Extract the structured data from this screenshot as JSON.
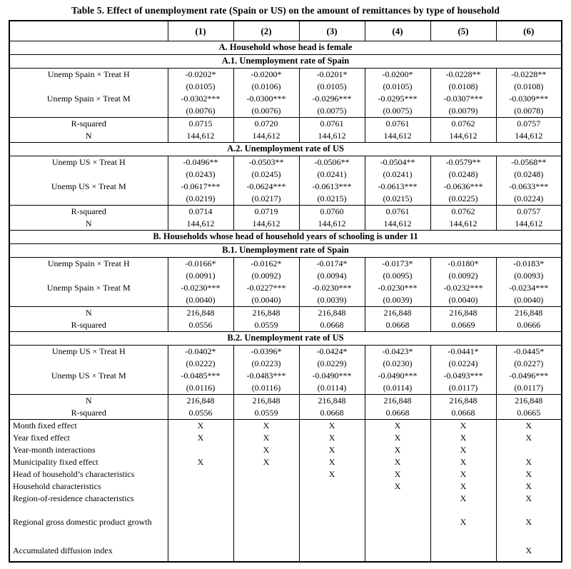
{
  "title": "Table 5. Effect of unemployment rate (Spain or US) on the amount of remittances by type of household",
  "columns": [
    "(1)",
    "(2)",
    "(3)",
    "(4)",
    "(5)",
    "(6)"
  ],
  "colors": {
    "border": "#000000",
    "text": "#000000",
    "background": "#ffffff"
  },
  "rows": [
    {
      "t": "section",
      "bt": true,
      "label": "A. Household whose head is female"
    },
    {
      "t": "section",
      "bt": true,
      "label": "A.1. Unemployment rate of Spain"
    },
    {
      "t": "data",
      "bt": true,
      "label": "Unemp Spain × Treat H",
      "values": [
        "-0.0202*",
        "-0.0200*",
        "-0.0201*",
        "-0.0200*",
        "-0.0228**",
        "-0.0228**"
      ]
    },
    {
      "t": "data",
      "label": "",
      "values": [
        "(0.0105)",
        "(0.0106)",
        "(0.0105)",
        "(0.0105)",
        "(0.0108)",
        "(0.0108)"
      ]
    },
    {
      "t": "data",
      "label": "Unemp Spain × Treat M",
      "values": [
        "-0.0302***",
        "-0.0300***",
        "-0.0296***",
        "-0.0295***",
        "-0.0307***",
        "-0.0309***"
      ]
    },
    {
      "t": "data",
      "label": "",
      "values": [
        "(0.0076)",
        "(0.0076)",
        "(0.0075)",
        "(0.0075)",
        "(0.0079)",
        "(0.0078)"
      ]
    },
    {
      "t": "data",
      "bt": true,
      "label": "R-squared",
      "values": [
        "0.0715",
        "0.0720",
        "0.0761",
        "0.0761",
        "0.0762",
        "0.0757"
      ]
    },
    {
      "t": "data",
      "label": "N",
      "values": [
        "144,612",
        "144,612",
        "144,612",
        "144,612",
        "144,612",
        "144,612"
      ]
    },
    {
      "t": "section",
      "bt": true,
      "label": "A.2. Unemployment rate of US"
    },
    {
      "t": "data",
      "bt": true,
      "label": "Unemp US × Treat H",
      "values": [
        "-0.0496**",
        "-0.0503**",
        "-0.0506**",
        "-0.0504**",
        "-0.0579**",
        "-0.0568**"
      ]
    },
    {
      "t": "data",
      "label": "",
      "values": [
        "(0.0243)",
        "(0.0245)",
        "(0.0241)",
        "(0.0241)",
        "(0.0248)",
        "(0.0248)"
      ]
    },
    {
      "t": "data",
      "label": "Unemp US × Treat M",
      "values": [
        "-0.0617***",
        "-0.0624***",
        "-0.0613***",
        "-0.0613***",
        "-0.0636***",
        "-0.0633***"
      ]
    },
    {
      "t": "data",
      "label": "",
      "values": [
        "(0.0219)",
        "(0.0217)",
        "(0.0215)",
        "(0.0215)",
        "(0.0225)",
        "(0.0224)"
      ]
    },
    {
      "t": "data",
      "bt": true,
      "label": "R-squared",
      "values": [
        "0.0714",
        "0.0719",
        "0.0760",
        "0.0761",
        "0.0762",
        "0.0757"
      ]
    },
    {
      "t": "data",
      "label": "N",
      "values": [
        "144,612",
        "144,612",
        "144,612",
        "144,612",
        "144,612",
        "144,612"
      ]
    },
    {
      "t": "section",
      "bt": true,
      "label": "B. Households whose head of household years of schooling is under 11"
    },
    {
      "t": "section",
      "bt": true,
      "label": "B.1. Unemployment rate of Spain"
    },
    {
      "t": "data",
      "bt": true,
      "label": "Unemp Spain × Treat H",
      "values": [
        "-0.0166*",
        "-0.0162*",
        "-0.0174*",
        "-0.0173*",
        "-0.0180*",
        "-0.0183*"
      ]
    },
    {
      "t": "data",
      "label": "",
      "values": [
        "(0.0091)",
        "(0.0092)",
        "(0.0094)",
        "(0.0095)",
        "(0.0092)",
        "(0.0093)"
      ]
    },
    {
      "t": "data",
      "label": "Unemp Spain × Treat M",
      "values": [
        "-0.0230***",
        "-0.0227***",
        "-0.0230***",
        "-0.0230***",
        "-0.0232***",
        "-0.0234***"
      ]
    },
    {
      "t": "data",
      "label": "",
      "values": [
        "(0.0040)",
        "(0.0040)",
        "(0.0039)",
        "(0.0039)",
        "(0.0040)",
        "(0.0040)"
      ]
    },
    {
      "t": "data",
      "bt": true,
      "label": "N",
      "values": [
        "216,848",
        "216,848",
        "216,848",
        "216,848",
        "216,848",
        "216,848"
      ]
    },
    {
      "t": "data",
      "label": "R-squared",
      "values": [
        "0.0556",
        "0.0559",
        "0.0668",
        "0.0668",
        "0.0669",
        "0.0666"
      ]
    },
    {
      "t": "section",
      "bt": true,
      "label": "B.2. Unemployment rate of US"
    },
    {
      "t": "data",
      "bt": true,
      "label": "Unemp US × Treat H",
      "values": [
        "-0.0402*",
        "-0.0396*",
        "-0.0424*",
        "-0.0423*",
        "-0.0441*",
        "-0.0445*"
      ]
    },
    {
      "t": "data",
      "label": "",
      "values": [
        "(0.0222)",
        "(0.0223)",
        "(0.0229)",
        "(0.0230)",
        "(0.0224)",
        "(0.0227)"
      ]
    },
    {
      "t": "data",
      "label": "Unemp US × Treat M",
      "values": [
        "-0.0485***",
        "-0.0483***",
        "-0.0490***",
        "-0.0490***",
        "-0.0493***",
        "-0.0496***"
      ]
    },
    {
      "t": "data",
      "label": "",
      "values": [
        "(0.0116)",
        "(0.0116)",
        "(0.0114)",
        "(0.0114)",
        "(0.0117)",
        "(0.0117)"
      ]
    },
    {
      "t": "data",
      "bt": true,
      "label": "N",
      "values": [
        "216,848",
        "216,848",
        "216,848",
        "216,848",
        "216,848",
        "216,848"
      ]
    },
    {
      "t": "data",
      "label": "R-squared",
      "values": [
        "0.0556",
        "0.0559",
        "0.0668",
        "0.0668",
        "0.0668",
        "0.0665"
      ]
    },
    {
      "t": "left",
      "bt": true,
      "label": "Month fixed effect",
      "values": [
        "X",
        "X",
        "X",
        "X",
        "X",
        "X"
      ]
    },
    {
      "t": "left",
      "label": "Year fixed effect",
      "values": [
        "X",
        "X",
        "X",
        "X",
        "X",
        "X"
      ]
    },
    {
      "t": "left",
      "label": "Year-month interactions",
      "values": [
        "",
        "X",
        "X",
        "X",
        "X",
        ""
      ]
    },
    {
      "t": "left",
      "label": "Municipality fixed effect",
      "values": [
        "X",
        "X",
        "X",
        "X",
        "X",
        "X"
      ]
    },
    {
      "t": "left",
      "label": "Head of household’s characteristics",
      "values": [
        "",
        "",
        "X",
        "X",
        "X",
        "X"
      ]
    },
    {
      "t": "left",
      "label": "Household characteristics",
      "values": [
        "",
        "",
        "",
        "X",
        "X",
        "X"
      ]
    },
    {
      "t": "left",
      "label": "Region-of-residence  characteristics",
      "values": [
        "",
        "",
        "",
        "",
        "X",
        "X"
      ]
    },
    {
      "t": "left",
      "style": "tall",
      "label": "Regional gross domestic product growth",
      "values": [
        "",
        "",
        "",
        "",
        "X",
        "X"
      ]
    },
    {
      "t": "left",
      "style": "med",
      "label": "Accumulated diffusion index",
      "values": [
        "",
        "",
        "",
        "",
        "",
        "X"
      ]
    }
  ]
}
